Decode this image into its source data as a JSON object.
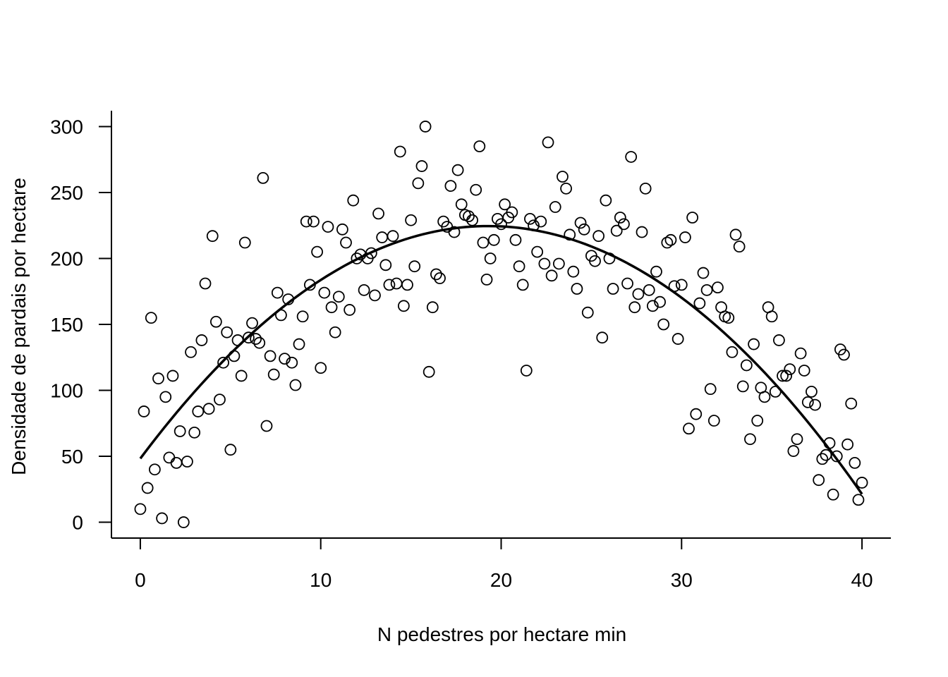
{
  "chart_data": {
    "type": "scatter",
    "title": "",
    "xlabel": "N pedestres por hectare min",
    "ylabel": "Densidade de pardais por hectare",
    "xlim": [
      -1.6,
      41.6
    ],
    "ylim": [
      -12,
      312
    ],
    "x_ticks": [
      0,
      10,
      20,
      30,
      40
    ],
    "y_ticks": [
      0,
      50,
      100,
      150,
      200,
      250,
      300
    ],
    "grid": false,
    "legend": "none",
    "point_color": "#000000",
    "line_color": "#000000",
    "series": [
      {
        "type": "scatter",
        "points": [
          [
            0.0,
            10
          ],
          [
            0.2,
            84
          ],
          [
            0.4,
            26
          ],
          [
            0.6,
            155
          ],
          [
            0.8,
            40
          ],
          [
            1.0,
            109
          ],
          [
            1.2,
            3
          ],
          [
            1.4,
            95
          ],
          [
            1.6,
            49
          ],
          [
            1.8,
            111
          ],
          [
            2.0,
            45
          ],
          [
            2.2,
            69
          ],
          [
            2.4,
            0
          ],
          [
            2.6,
            46
          ],
          [
            2.8,
            129
          ],
          [
            3.0,
            68
          ],
          [
            3.2,
            84
          ],
          [
            3.4,
            138
          ],
          [
            3.6,
            181
          ],
          [
            3.8,
            86
          ],
          [
            4.0,
            217
          ],
          [
            4.2,
            152
          ],
          [
            4.4,
            93
          ],
          [
            4.6,
            121
          ],
          [
            4.8,
            144
          ],
          [
            5.0,
            55
          ],
          [
            5.2,
            126
          ],
          [
            5.4,
            138
          ],
          [
            5.6,
            111
          ],
          [
            5.8,
            212
          ],
          [
            6.0,
            140
          ],
          [
            6.2,
            151
          ],
          [
            6.4,
            139
          ],
          [
            6.6,
            136
          ],
          [
            6.8,
            261
          ],
          [
            7.0,
            73
          ],
          [
            7.2,
            126
          ],
          [
            7.4,
            112
          ],
          [
            7.6,
            174
          ],
          [
            7.8,
            157
          ],
          [
            8.0,
            124
          ],
          [
            8.2,
            169
          ],
          [
            8.4,
            121
          ],
          [
            8.6,
            104
          ],
          [
            8.8,
            135
          ],
          [
            9.0,
            156
          ],
          [
            9.2,
            228
          ],
          [
            9.4,
            180
          ],
          [
            9.6,
            228
          ],
          [
            9.8,
            205
          ],
          [
            10.0,
            117
          ],
          [
            10.2,
            174
          ],
          [
            10.4,
            224
          ],
          [
            10.6,
            163
          ],
          [
            10.8,
            144
          ],
          [
            11.0,
            171
          ],
          [
            11.2,
            222
          ],
          [
            11.4,
            212
          ],
          [
            11.6,
            161
          ],
          [
            11.8,
            244
          ],
          [
            12.0,
            200
          ],
          [
            12.2,
            203
          ],
          [
            12.4,
            176
          ],
          [
            12.6,
            200
          ],
          [
            12.8,
            204
          ],
          [
            13.0,
            172
          ],
          [
            13.2,
            234
          ],
          [
            13.4,
            216
          ],
          [
            13.6,
            195
          ],
          [
            13.8,
            180
          ],
          [
            14.0,
            217
          ],
          [
            14.2,
            181
          ],
          [
            14.4,
            281
          ],
          [
            14.6,
            164
          ],
          [
            14.8,
            180
          ],
          [
            15.0,
            229
          ],
          [
            15.2,
            194
          ],
          [
            15.4,
            257
          ],
          [
            15.6,
            270
          ],
          [
            15.8,
            300
          ],
          [
            16.0,
            114
          ],
          [
            16.2,
            163
          ],
          [
            16.4,
            188
          ],
          [
            16.6,
            185
          ],
          [
            16.8,
            228
          ],
          [
            17.0,
            224
          ],
          [
            17.2,
            255
          ],
          [
            17.4,
            220
          ],
          [
            17.6,
            267
          ],
          [
            17.8,
            241
          ],
          [
            18.0,
            233
          ],
          [
            18.2,
            232
          ],
          [
            18.4,
            229
          ],
          [
            18.6,
            252
          ],
          [
            18.8,
            285
          ],
          [
            19.0,
            212
          ],
          [
            19.2,
            184
          ],
          [
            19.4,
            200
          ],
          [
            19.6,
            214
          ],
          [
            19.8,
            230
          ],
          [
            20.0,
            226
          ],
          [
            20.2,
            241
          ],
          [
            20.4,
            231
          ],
          [
            20.6,
            235
          ],
          [
            20.8,
            214
          ],
          [
            21.0,
            194
          ],
          [
            21.2,
            180
          ],
          [
            21.4,
            115
          ],
          [
            21.6,
            230
          ],
          [
            21.8,
            225
          ],
          [
            22.0,
            205
          ],
          [
            22.2,
            228
          ],
          [
            22.4,
            196
          ],
          [
            22.6,
            288
          ],
          [
            22.8,
            187
          ],
          [
            23.0,
            239
          ],
          [
            23.2,
            196
          ],
          [
            23.4,
            262
          ],
          [
            23.6,
            253
          ],
          [
            23.8,
            218
          ],
          [
            24.0,
            190
          ],
          [
            24.2,
            177
          ],
          [
            24.4,
            227
          ],
          [
            24.6,
            222
          ],
          [
            24.8,
            159
          ],
          [
            25.0,
            202
          ],
          [
            25.2,
            198
          ],
          [
            25.4,
            217
          ],
          [
            25.6,
            140
          ],
          [
            25.8,
            244
          ],
          [
            26.0,
            200
          ],
          [
            26.2,
            177
          ],
          [
            26.4,
            221
          ],
          [
            26.6,
            231
          ],
          [
            26.8,
            226
          ],
          [
            27.0,
            181
          ],
          [
            27.2,
            277
          ],
          [
            27.4,
            163
          ],
          [
            27.6,
            173
          ],
          [
            27.8,
            220
          ],
          [
            28.0,
            253
          ],
          [
            28.2,
            176
          ],
          [
            28.4,
            164
          ],
          [
            28.6,
            190
          ],
          [
            28.8,
            167
          ],
          [
            29.0,
            150
          ],
          [
            29.2,
            212
          ],
          [
            29.4,
            214
          ],
          [
            29.6,
            179
          ],
          [
            29.8,
            139
          ],
          [
            30.0,
            180
          ],
          [
            30.2,
            216
          ],
          [
            30.4,
            71
          ],
          [
            30.6,
            231
          ],
          [
            30.8,
            82
          ],
          [
            31.0,
            166
          ],
          [
            31.2,
            189
          ],
          [
            31.4,
            176
          ],
          [
            31.6,
            101
          ],
          [
            31.8,
            77
          ],
          [
            32.0,
            178
          ],
          [
            32.2,
            163
          ],
          [
            32.4,
            156
          ],
          [
            32.6,
            155
          ],
          [
            32.8,
            129
          ],
          [
            33.0,
            218
          ],
          [
            33.2,
            209
          ],
          [
            33.4,
            103
          ],
          [
            33.6,
            119
          ],
          [
            33.8,
            63
          ],
          [
            34.0,
            135
          ],
          [
            34.2,
            77
          ],
          [
            34.4,
            102
          ],
          [
            34.6,
            95
          ],
          [
            34.8,
            163
          ],
          [
            35.0,
            156
          ],
          [
            35.2,
            99
          ],
          [
            35.4,
            138
          ],
          [
            35.6,
            111
          ],
          [
            35.8,
            111
          ],
          [
            36.0,
            116
          ],
          [
            36.2,
            54
          ],
          [
            36.4,
            63
          ],
          [
            36.6,
            128
          ],
          [
            36.8,
            115
          ],
          [
            37.0,
            91
          ],
          [
            37.2,
            99
          ],
          [
            37.4,
            89
          ],
          [
            37.6,
            32
          ],
          [
            37.8,
            48
          ],
          [
            38.0,
            51
          ],
          [
            38.2,
            60
          ],
          [
            38.4,
            21
          ],
          [
            38.6,
            50
          ],
          [
            38.8,
            131
          ],
          [
            39.0,
            127
          ],
          [
            39.2,
            59
          ],
          [
            39.4,
            90
          ],
          [
            39.6,
            45
          ],
          [
            39.8,
            17
          ],
          [
            40.0,
            30
          ]
        ]
      },
      {
        "type": "line",
        "fit": "quadratic",
        "x_range": [
          0,
          40
        ],
        "coefficients": {
          "a": -0.47368,
          "b": 18.2737,
          "c": 48.3
        }
      }
    ]
  }
}
